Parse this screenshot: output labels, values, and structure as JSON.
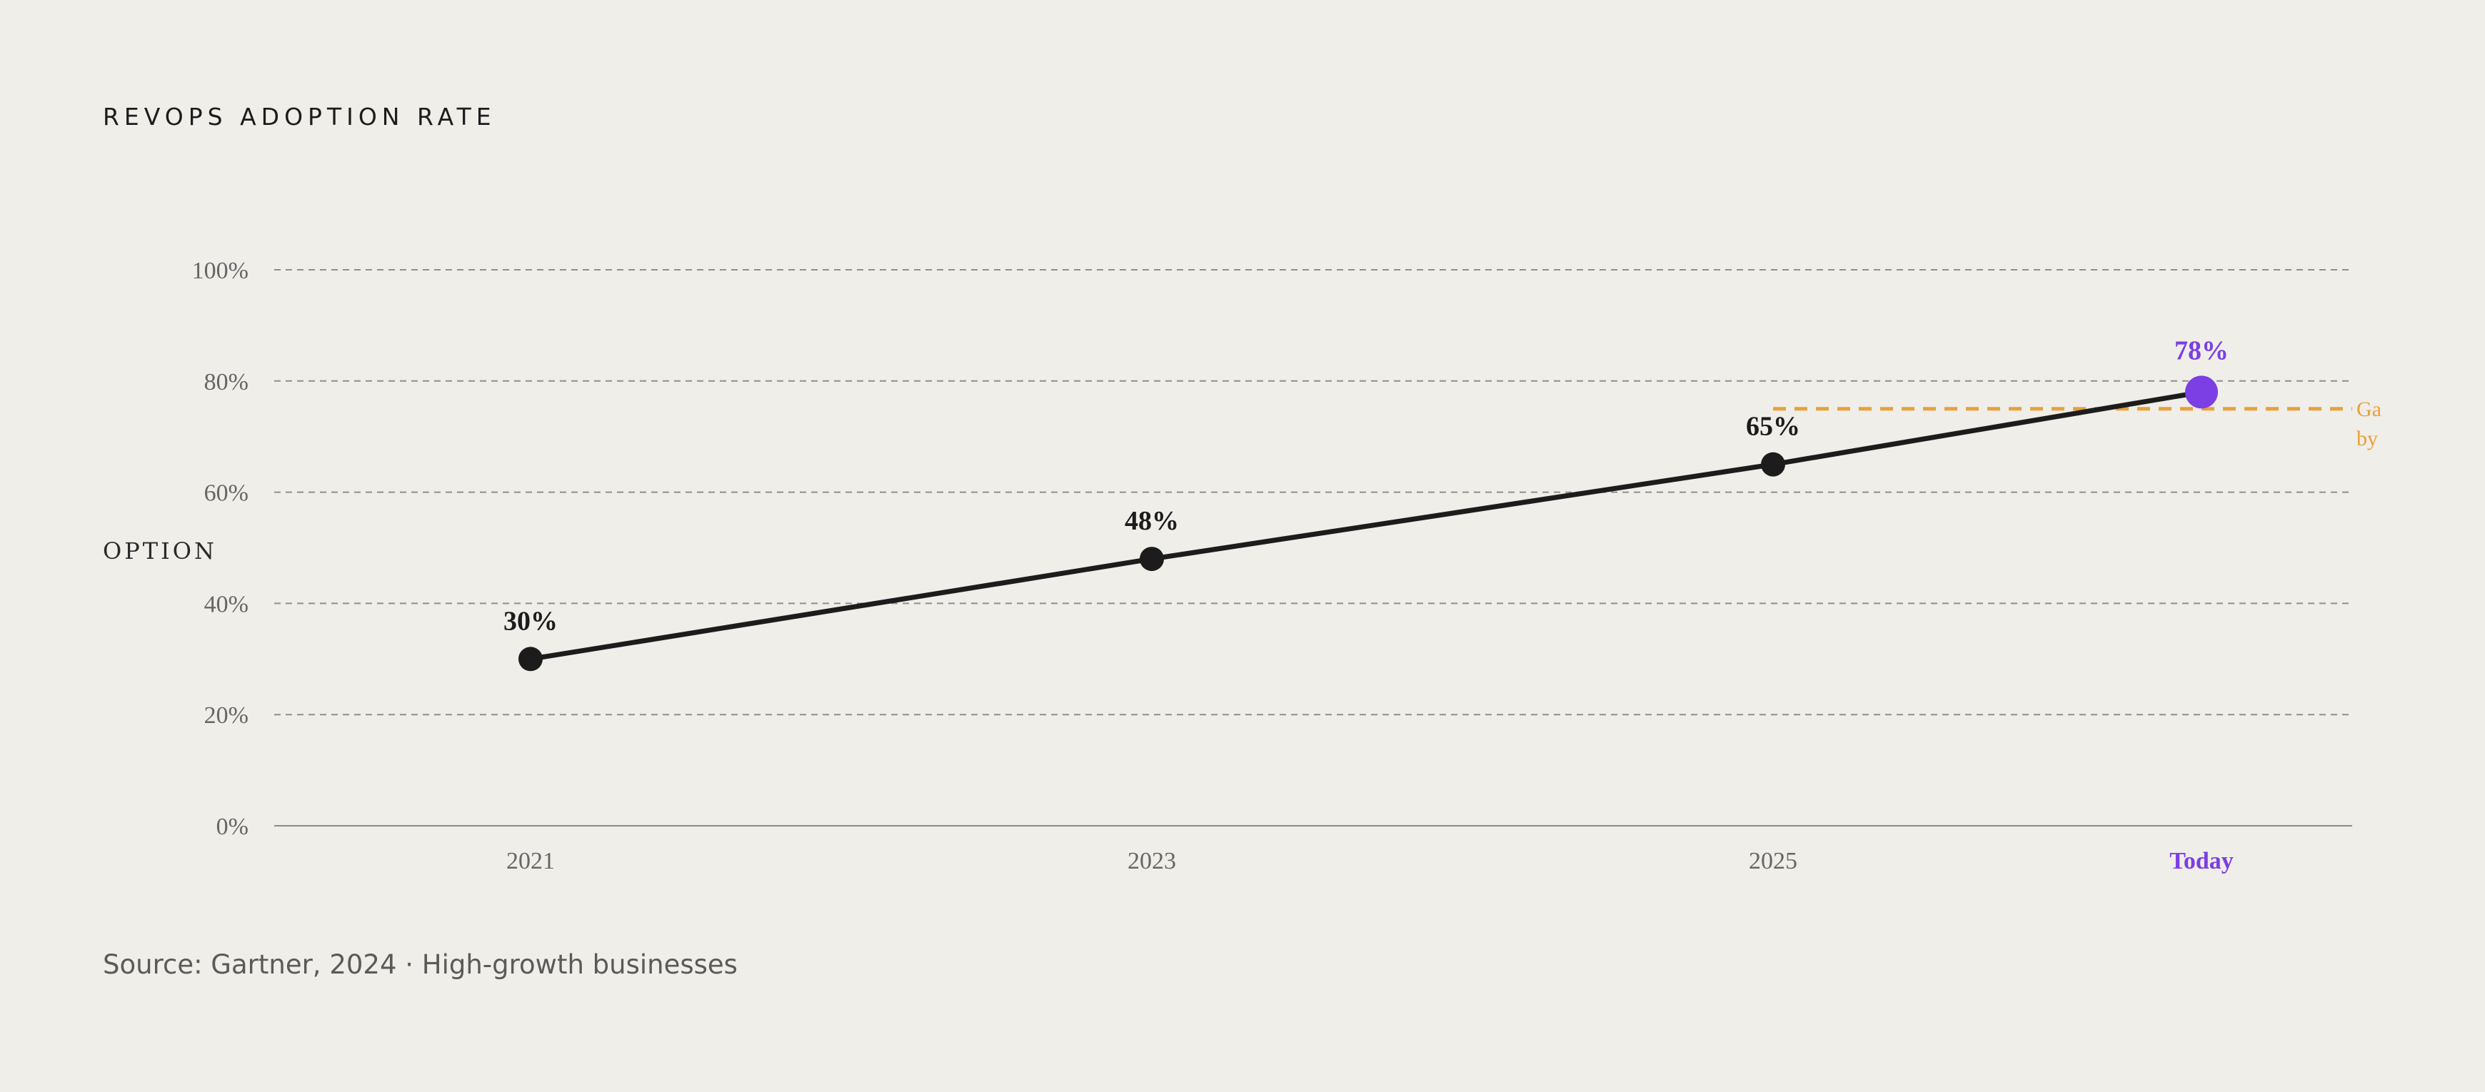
{
  "chart_data": {
    "type": "line",
    "title": "REVOPS ADOPTION RATE",
    "ylabel": "OPTION",
    "xlabel": "",
    "x": [
      "2021",
      "2023",
      "2025",
      "Today"
    ],
    "series": [
      {
        "values": [
          30,
          48,
          65,
          78
        ]
      }
    ],
    "data_labels": [
      "30%",
      "48%",
      "65%",
      "78%"
    ],
    "ylim": [
      0,
      100
    ],
    "y_ticks": [
      "0%",
      "20%",
      "40%",
      "60%",
      "80%",
      "100%"
    ],
    "grid": true,
    "highlight_point": {
      "x": "Today",
      "value": 78,
      "color": "#7b3fe4"
    },
    "reference_line": {
      "value": 75,
      "from": "2025",
      "label_lines": [
        "Ga",
        "by"
      ],
      "color": "#e9a03a"
    },
    "line_color": "#1c1c1c"
  },
  "source": "Source: Gartner, 2024 · High-growth businesses"
}
